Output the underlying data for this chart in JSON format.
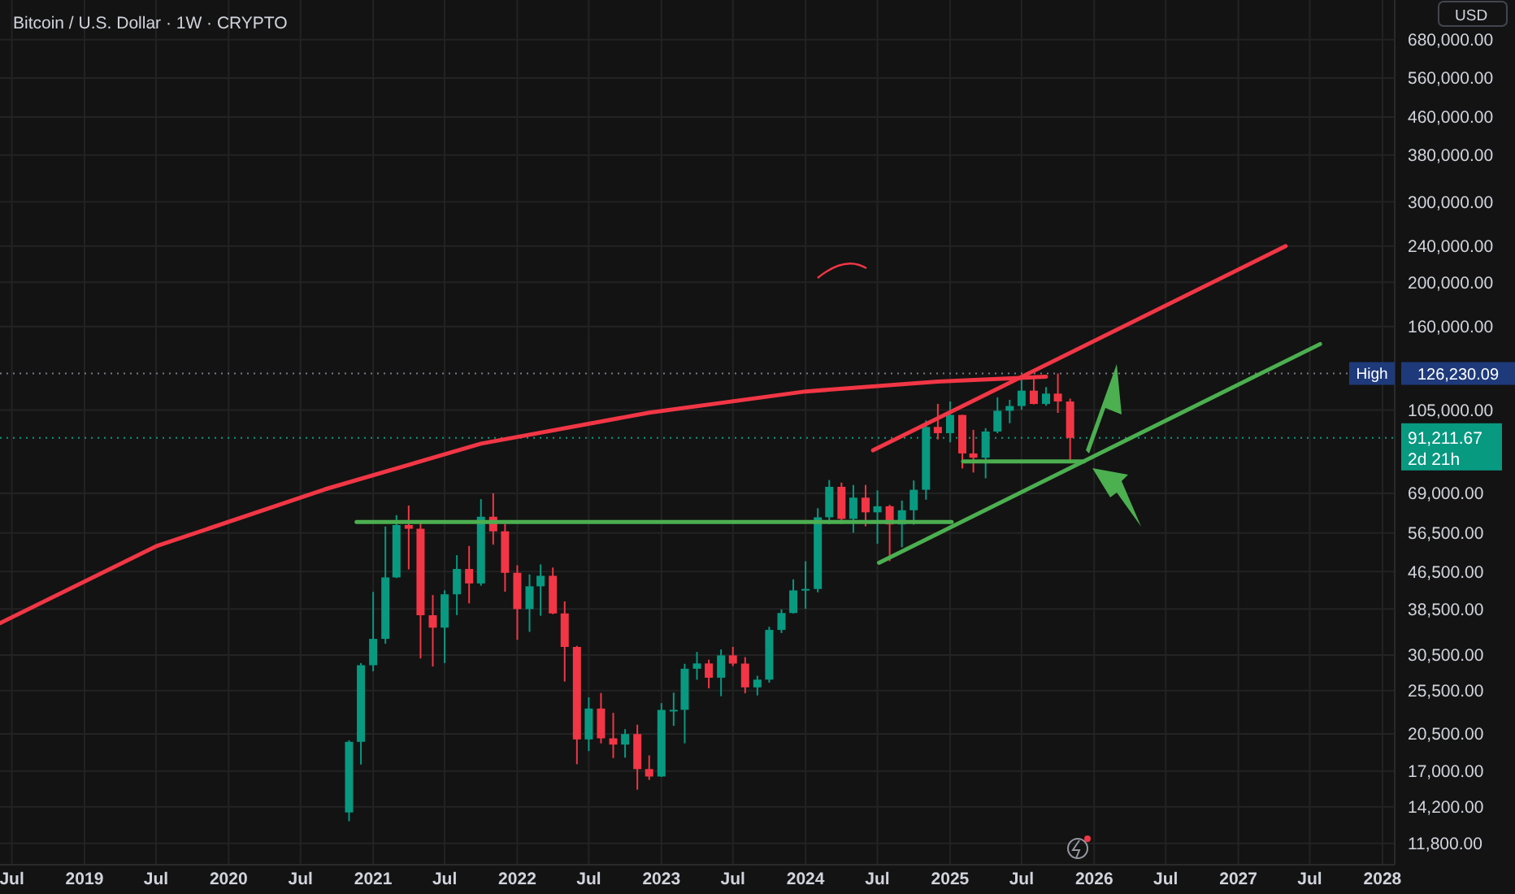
{
  "chart_data": {
    "type": "candlestick",
    "title": "Bitcoin / U.S. Dollar · 1W · CRYPTO",
    "ylabel": "USD",
    "x": [
      "2020-11",
      "2020-12",
      "2021-01",
      "2021-02",
      "2021-03",
      "2021-04",
      "2021-05",
      "2021-06",
      "2021-07",
      "2021-08",
      "2021-09",
      "2021-10",
      "2021-11",
      "2021-12",
      "2022-01",
      "2022-02",
      "2022-03",
      "2022-04",
      "2022-05",
      "2022-06",
      "2022-07",
      "2022-08",
      "2022-09",
      "2022-10",
      "2022-11",
      "2022-12",
      "2023-01",
      "2023-02",
      "2023-03",
      "2023-04",
      "2023-05",
      "2023-06",
      "2023-07",
      "2023-08",
      "2023-09",
      "2023-10",
      "2023-11",
      "2023-12",
      "2024-01",
      "2024-02",
      "2024-03",
      "2024-04",
      "2024-05",
      "2024-06",
      "2024-07",
      "2024-08",
      "2024-09",
      "2024-10",
      "2024-11",
      "2024-12",
      "2025-01",
      "2025-02",
      "2025-03",
      "2025-04",
      "2025-05",
      "2025-06",
      "2025-07",
      "2025-08",
      "2025-09",
      "2025-10",
      "2025-11"
    ],
    "ohlc": [
      [
        13800,
        19860,
        13200,
        19700
      ],
      [
        19700,
        29300,
        17570,
        28990
      ],
      [
        28990,
        41950,
        28130,
        33110
      ],
      [
        33110,
        58350,
        32300,
        45140
      ],
      [
        45140,
        61780,
        45000,
        58790
      ],
      [
        58790,
        64850,
        47000,
        57700
      ],
      [
        57700,
        59500,
        30000,
        37300
      ],
      [
        37300,
        41300,
        28800,
        35040
      ],
      [
        35040,
        42300,
        29300,
        41460
      ],
      [
        41460,
        50500,
        37330,
        47100
      ],
      [
        47100,
        52900,
        39600,
        43790
      ],
      [
        43790,
        67000,
        43290,
        61300
      ],
      [
        61300,
        69000,
        53250,
        56950
      ],
      [
        56950,
        59100,
        42000,
        46200
      ],
      [
        46200,
        47990,
        32950,
        38470
      ],
      [
        38470,
        45820,
        34300,
        43160
      ],
      [
        43160,
        48200,
        37200,
        45510
      ],
      [
        45510,
        47450,
        37500,
        37640
      ],
      [
        37640,
        40000,
        26700,
        31790
      ],
      [
        31790,
        31960,
        17600,
        19940
      ],
      [
        19940,
        24650,
        18800,
        23300
      ],
      [
        23300,
        25200,
        19550,
        20050
      ],
      [
        20050,
        22800,
        18150,
        19430
      ],
      [
        19430,
        21000,
        18190,
        20490
      ],
      [
        20490,
        21480,
        15480,
        17170
      ],
      [
        17170,
        18400,
        16260,
        16540
      ],
      [
        16540,
        23950,
        16500,
        23140
      ],
      [
        23140,
        25250,
        21350,
        23150
      ],
      [
        23150,
        29200,
        19550,
        28480
      ],
      [
        28480,
        31000,
        26940,
        29250
      ],
      [
        29250,
        29820,
        25810,
        27220
      ],
      [
        27220,
        31390,
        24800,
        30470
      ],
      [
        30470,
        31800,
        28860,
        29230
      ],
      [
        29230,
        30200,
        25170,
        25930
      ],
      [
        25930,
        27480,
        24900,
        26960
      ],
      [
        26960,
        35200,
        26550,
        34640
      ],
      [
        34640,
        38430,
        34100,
        37720
      ],
      [
        37720,
        44700,
        37630,
        42280
      ],
      [
        42280,
        48970,
        38550,
        42580
      ],
      [
        42580,
        64000,
        41880,
        61130
      ],
      [
        61130,
        73750,
        59000,
        71280
      ],
      [
        71280,
        72800,
        59100,
        60640
      ],
      [
        60640,
        71950,
        56550,
        67490
      ],
      [
        67490,
        71950,
        58400,
        62680
      ],
      [
        62680,
        70000,
        53500,
        64620
      ],
      [
        64620,
        65100,
        49000,
        58970
      ],
      [
        58970,
        66500,
        52550,
        63330
      ],
      [
        63330,
        73600,
        58900,
        70220
      ],
      [
        70220,
        99600,
        66800,
        96410
      ],
      [
        96410,
        108300,
        90500,
        93430
      ],
      [
        93430,
        109600,
        89200,
        102400
      ],
      [
        102400,
        102500,
        78200,
        84350
      ],
      [
        84350,
        95000,
        76600,
        82550
      ],
      [
        82550,
        95800,
        74400,
        94200
      ],
      [
        94200,
        111900,
        93400,
        104600
      ],
      [
        104600,
        110500,
        98200,
        107130
      ],
      [
        107130,
        123200,
        105100,
        115760
      ],
      [
        115760,
        124450,
        108000,
        108250
      ],
      [
        108250,
        117900,
        107300,
        114050
      ],
      [
        114050,
        126230.09,
        103500,
        109600
      ],
      [
        109600,
        111200,
        80600,
        91211.67
      ]
    ],
    "colors": [
      "#089981",
      "#089981",
      "#089981",
      "#089981",
      "#089981",
      "#f23645",
      "#f23645",
      "#f23645",
      "#089981",
      "#089981",
      "#f23645",
      "#089981",
      "#f23645",
      "#f23645",
      "#f23645",
      "#089981",
      "#089981",
      "#f23645",
      "#f23645",
      "#f23645",
      "#089981",
      "#f23645",
      "#f23645",
      "#089981",
      "#f23645",
      "#f23645",
      "#089981",
      "#089981",
      "#089981",
      "#089981",
      "#f23645",
      "#089981",
      "#f23645",
      "#f23645",
      "#089981",
      "#089981",
      "#089981",
      "#089981",
      "#089981",
      "#089981",
      "#089981",
      "#f23645",
      "#089981",
      "#f23645",
      "#089981",
      "#f23645",
      "#089981",
      "#089981",
      "#089981",
      "#f23645",
      "#089981",
      "#f23645",
      "#f23645",
      "#089981",
      "#089981",
      "#089981",
      "#089981",
      "#f23645",
      "#089981",
      "#f23645",
      "#f23645"
    ],
    "series": [
      {
        "type": "line",
        "color": "#f23645",
        "x": [
          "2018-06",
          "2019-07",
          "2020-09",
          "2021-10",
          "2022-12",
          "2024-01",
          "2024-12",
          "2025-09"
        ],
        "values": [
          35850,
          52800,
          70400,
          88600,
          103600,
          115300,
          121200,
          124200
        ]
      },
      {
        "type": "line",
        "color": "#f23645",
        "x": [
          "2024-06-20",
          "2027-05-01"
        ],
        "values": [
          85700,
          239900
        ]
      },
      {
        "type": "line",
        "color": "#4caf50",
        "x": [
          "2024-07-05",
          "2027-07-27"
        ],
        "values": [
          48600,
          146400
        ]
      },
      {
        "type": "line",
        "color": "#4caf50",
        "x": [
          "2020-11-20",
          "2025-01-05"
        ],
        "values": [
          59700,
          59700
        ]
      },
      {
        "type": "line",
        "color": "#4caf50",
        "x": [
          "2025-02-03",
          "2025-12-06"
        ],
        "values": [
          81000,
          81000
        ]
      }
    ],
    "ref_lines": [
      {
        "axis": "y",
        "value": 126230.09,
        "label": "High",
        "color": "#787b86",
        "line_style": "dotted"
      },
      {
        "axis": "y",
        "value": 91211.67,
        "label": "2d 21h",
        "color": "#089981",
        "line_style": "dotted"
      }
    ],
    "annotations": [
      "126,230.09",
      "91,211.67"
    ],
    "log": true,
    "grid": true,
    "xlim": [
      "2018-06-01",
      "2028-02-01"
    ],
    "xticks": [
      {
        "value": "2018-07-01",
        "label": "Jul"
      },
      {
        "value": "2019-01-01",
        "label": "2019"
      },
      {
        "value": "2019-07-01",
        "label": "Jul"
      },
      {
        "value": "2020-01-01",
        "label": "2020"
      },
      {
        "value": "2020-07-01",
        "label": "Jul"
      },
      {
        "value": "2021-01-01",
        "label": "2021"
      },
      {
        "value": "2021-07-01",
        "label": "Jul"
      },
      {
        "value": "2022-01-01",
        "label": "2022"
      },
      {
        "value": "2022-07-01",
        "label": "Jul"
      },
      {
        "value": "2023-01-01",
        "label": "2023"
      },
      {
        "value": "2023-07-01",
        "label": "Jul"
      },
      {
        "value": "2024-01-01",
        "label": "2024"
      },
      {
        "value": "2024-07-01",
        "label": "Jul"
      },
      {
        "value": "2025-01-01",
        "label": "2025"
      },
      {
        "value": "2025-07-01",
        "label": "Jul"
      },
      {
        "value": "2026-01-01",
        "label": "2026"
      },
      {
        "value": "2026-07-01",
        "label": "Jul"
      },
      {
        "value": "2027-01-01",
        "label": "2027"
      },
      {
        "value": "2027-07-01",
        "label": "Jul"
      },
      {
        "value": "2028-01-01",
        "label": "2028"
      }
    ],
    "ylim": [
      10600,
      830000
    ],
    "yticks": [
      {
        "value": 11800,
        "label": "11,800.00"
      },
      {
        "value": 14200,
        "label": "14,200.00"
      },
      {
        "value": 17000,
        "label": "17,000.00"
      },
      {
        "value": 20500,
        "label": "20,500.00"
      },
      {
        "value": 25500,
        "label": "25,500.00"
      },
      {
        "value": 30500,
        "label": "30,500.00"
      },
      {
        "value": 38500,
        "label": "38,500.00"
      },
      {
        "value": 46500,
        "label": "46,500.00"
      },
      {
        "value": 56500,
        "label": "56,500.00"
      },
      {
        "value": 69000,
        "label": "69,000.00"
      },
      {
        "value": 105000,
        "label": "105,000.00"
      },
      {
        "value": 160000,
        "label": "160,000.00"
      },
      {
        "value": 200000,
        "label": "200,000.00"
      },
      {
        "value": 240000,
        "label": "240,000.00"
      },
      {
        "value": 300000,
        "label": "300,000.00"
      },
      {
        "value": 380000,
        "label": "380,000.00"
      },
      {
        "value": 460000,
        "label": "460,000.00"
      },
      {
        "value": 560000,
        "label": "560,000.00"
      },
      {
        "value": 680000,
        "label": "680,000.00"
      }
    ]
  }
}
